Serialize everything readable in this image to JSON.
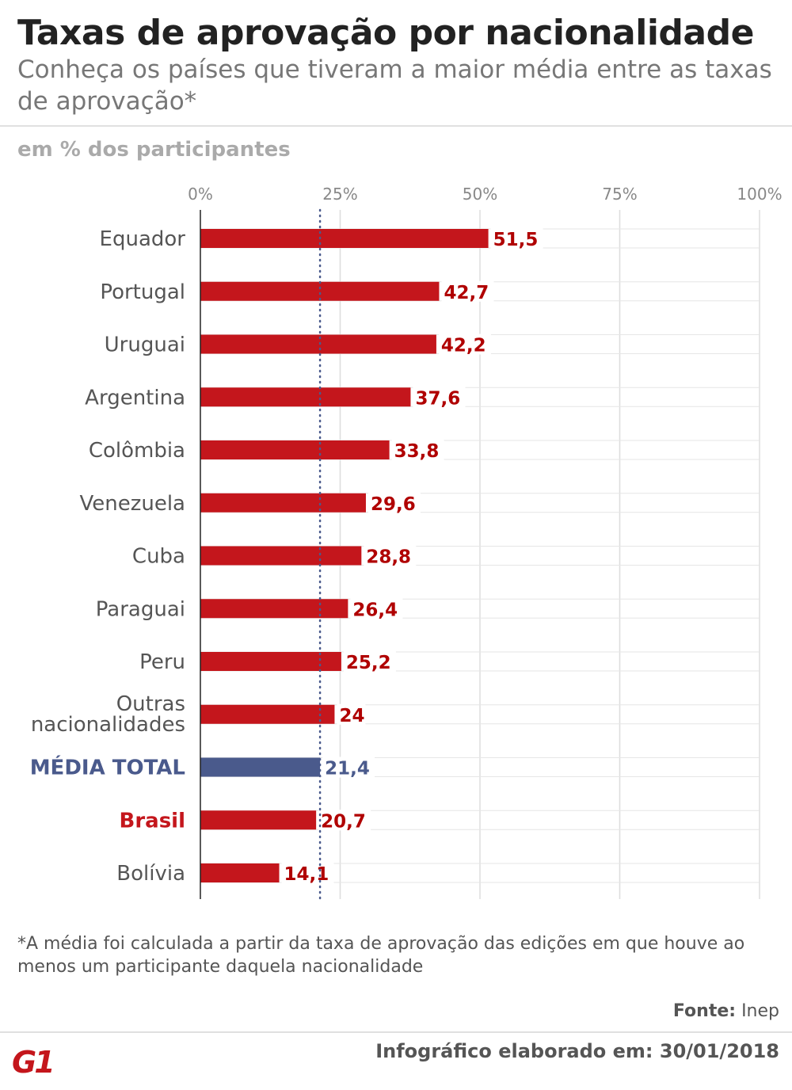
{
  "header": {
    "title": "Taxas de aprovação por nacionalidade",
    "subtitle": "Conheça os países que tiveram a maior média entre as taxas de aprovação*",
    "unit": "em % dos participantes"
  },
  "chart_data": {
    "type": "bar",
    "orientation": "horizontal",
    "categories": [
      "Equador",
      "Portugal",
      "Uruguai",
      "Argentina",
      "Colômbia",
      "Venezuela",
      "Cuba",
      "Paraguai",
      "Peru",
      "Outras nacionalidades",
      "MÉDIA TOTAL",
      "Brasil",
      "Bolívia"
    ],
    "values": [
      51.5,
      42.7,
      42.2,
      37.6,
      33.8,
      29.6,
      28.8,
      26.4,
      25.2,
      24,
      21.4,
      20.7,
      14.1
    ],
    "value_labels": [
      "51,5",
      "42,7",
      "42,2",
      "37,6",
      "33,8",
      "29,6",
      "28,8",
      "26,4",
      "25,2",
      "24",
      "21,4",
      "20,7",
      "14,1"
    ],
    "highlight": {
      "MÉDIA TOTAL": "#4a5a8c",
      "Brasil": "#c4161c"
    },
    "bar_color": "#c4161c",
    "value_color": "#b00000",
    "average_line": 21.4,
    "xlim": [
      0,
      100
    ],
    "xticks": [
      0,
      25,
      50,
      75,
      100
    ],
    "xtick_labels": [
      "0%",
      "25%",
      "50%",
      "75%",
      "100%"
    ],
    "grid": true
  },
  "footer": {
    "note": "*A média foi calculada a partir da taxa de aprovação das edições em que houve ao menos um participante daquela nacionalidade",
    "source_label": "Fonte:",
    "source_value": "Inep",
    "made": "Infográfico elaborado em: 30/01/2018",
    "logo": "G1"
  }
}
